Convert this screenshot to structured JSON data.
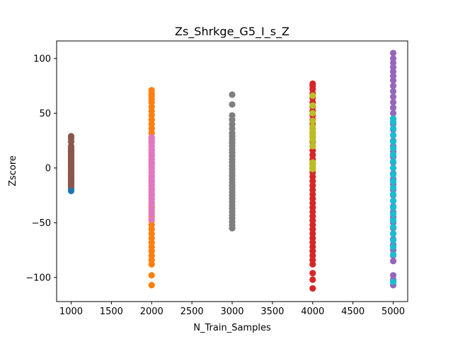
{
  "chart_data": {
    "type": "scatter",
    "title": "Zs_Shrkge_G5_I_s_Z",
    "xlabel": "N_Train_Samples",
    "ylabel": "Zscore",
    "xlim": [
      820,
      5180
    ],
    "ylim": [
      -122,
      116
    ],
    "x_ticks": [
      1000,
      1500,
      2000,
      2500,
      3000,
      3500,
      4000,
      4500,
      5000
    ],
    "x_tick_labels": [
      "1000",
      "1500",
      "2000",
      "2500",
      "3000",
      "3500",
      "4000",
      "4500",
      "5000"
    ],
    "y_ticks": [
      -100,
      -50,
      0,
      50,
      100
    ],
    "y_tick_labels": [
      "−100",
      "−50",
      "0",
      "50",
      "100"
    ],
    "grid": false,
    "legend": "none",
    "series": [
      {
        "color": "#1f77b4",
        "x": 1000,
        "values": [
          -21,
          -19,
          -17,
          -16,
          -15,
          -14,
          -12,
          -10,
          -8,
          -6
        ]
      },
      {
        "color": "#8c564b",
        "x": 1000,
        "values": [
          -16,
          -14,
          -13,
          -12,
          -11,
          -10,
          -9,
          -8,
          -7,
          -6,
          -5,
          -4,
          -3,
          -2,
          -1,
          0,
          1,
          2,
          3,
          4,
          5,
          6,
          7,
          8,
          9,
          10,
          11,
          12,
          13,
          14,
          15,
          16,
          17,
          18,
          19,
          20,
          24,
          27,
          29
        ]
      },
      {
        "color": "#ff7f0e",
        "x": 2000,
        "values": [
          -107,
          -98,
          -88,
          -84,
          -80,
          -76,
          -72,
          -68,
          -64,
          -60,
          -56,
          -52,
          -48,
          -44,
          -40,
          -36,
          -32,
          -28,
          -24,
          -20,
          -16,
          -12,
          -8,
          -4,
          0,
          4,
          8,
          12,
          16,
          20,
          24,
          28,
          32,
          36,
          40,
          44,
          48,
          52,
          56,
          60,
          63,
          66,
          68,
          71
        ]
      },
      {
        "color": "#e377c2",
        "x": 2000,
        "values": [
          -47,
          -42,
          -38,
          -34,
          -31,
          -28,
          -25,
          -22,
          -19,
          -16,
          -13,
          -10,
          -7,
          -4,
          -1,
          2,
          5,
          8,
          11,
          14,
          17,
          20,
          23,
          26,
          28
        ]
      },
      {
        "color": "#7f7f7f",
        "x": 3000,
        "values": [
          -55,
          -52,
          -49,
          -46,
          -43,
          -40,
          -37,
          -34,
          -31,
          -28,
          -25,
          -22,
          -19,
          -16,
          -13,
          -10,
          -7,
          -4,
          -1,
          2,
          5,
          8,
          11,
          14,
          17,
          20,
          23,
          26,
          29,
          32,
          36,
          40,
          44,
          48,
          58,
          67
        ]
      },
      {
        "color": "#d62728",
        "x": 4000,
        "values": [
          -110,
          -102,
          -96,
          -88,
          -84,
          -80,
          -76,
          -72,
          -68,
          -64,
          -60,
          -56,
          -52,
          -48,
          -44,
          -40,
          -36,
          -32,
          -28,
          -24,
          -20,
          -16,
          -12,
          -8,
          -4,
          0,
          4,
          8,
          12,
          16,
          20,
          24,
          28,
          32,
          36,
          40,
          44,
          48,
          52,
          56,
          60,
          64,
          68,
          72,
          75,
          77
        ]
      },
      {
        "color": "#bcbd22",
        "x": 4000,
        "values": [
          -1,
          1,
          3,
          5,
          20,
          25,
          28,
          30,
          33,
          36,
          38,
          43,
          50,
          57,
          66
        ]
      },
      {
        "color": "#9467bd",
        "x": 5000,
        "values": [
          -107,
          -102,
          -98,
          -85,
          -80,
          -75,
          -70,
          -65,
          -60,
          -55,
          -50,
          -45,
          -40,
          -35,
          -30,
          -25,
          -20,
          -15,
          -10,
          -5,
          0,
          5,
          10,
          15,
          20,
          25,
          30,
          35,
          40,
          45,
          50,
          55,
          60,
          65,
          70,
          75,
          80,
          84,
          88,
          92,
          96,
          100,
          105
        ]
      },
      {
        "color": "#17becf",
        "x": 5000,
        "values": [
          -104,
          -79,
          -72,
          -66,
          -60,
          -54,
          -48,
          -42,
          -36,
          -30,
          -24,
          -18,
          -12,
          -6,
          0,
          6,
          12,
          18,
          24,
          30,
          36,
          42,
          45
        ]
      }
    ]
  }
}
